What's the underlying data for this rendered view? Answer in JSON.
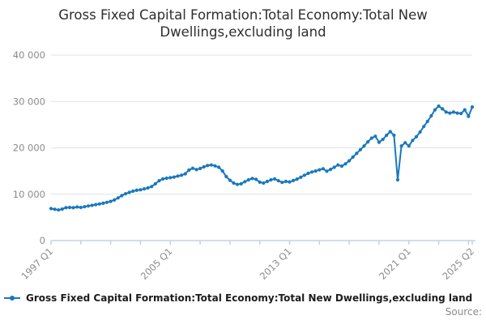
{
  "title_lines": [
    "Gross Fixed Capital Formation:Total Economy:Total New",
    "Dwellings,excluding land"
  ],
  "legend": {
    "label": "Gross Fixed Capital Formation:Total Economy:Total New Dwellings,excluding land"
  },
  "source_label": "Source:",
  "colors": {
    "line": "#1878be",
    "title_text": "#2e2e2e",
    "axis_text": "#8b8b8b",
    "gridline": "#e2e2e2",
    "axis_line": "#c7d0e4",
    "legend_text": "#1c1c1c",
    "source_text": "#8b8b8b"
  },
  "chart_data": {
    "type": "line",
    "title": "Gross Fixed Capital Formation:Total Economy:Total New Dwellings,excluding land",
    "xlabel": "",
    "ylabel": "",
    "frequency": "quarterly",
    "x_start": "1997 Q1",
    "x_end": "2025 Q2",
    "n_points": 114,
    "ylim": [
      0,
      40000
    ],
    "y_ticks": [
      0,
      10000,
      20000,
      30000,
      40000
    ],
    "y_tick_labels": [
      "0",
      "10 000",
      "20 000",
      "30 000",
      "40 000"
    ],
    "x_tick_labels": [
      "1997 Q1",
      "2005 Q1",
      "2013 Q1",
      "2021 Q1",
      "2025 Q2"
    ],
    "x_tick_indices": [
      0,
      32,
      64,
      96,
      113
    ],
    "minor_tick_every": 8,
    "grid": true,
    "marker": "circle",
    "legend_position": "bottom-left",
    "values": [
      6900,
      6750,
      6600,
      6800,
      7100,
      7150,
      7100,
      7250,
      7150,
      7300,
      7450,
      7600,
      7750,
      7900,
      8050,
      8250,
      8450,
      8750,
      9200,
      9700,
      10100,
      10400,
      10650,
      10850,
      10950,
      11150,
      11350,
      11650,
      12250,
      12900,
      13300,
      13450,
      13550,
      13700,
      13900,
      14100,
      14400,
      15200,
      15600,
      15300,
      15550,
      15900,
      16200,
      16300,
      16100,
      15800,
      15000,
      13800,
      13000,
      12400,
      12100,
      12250,
      12700,
      13100,
      13400,
      13200,
      12600,
      12400,
      12750,
      13100,
      13300,
      12900,
      12550,
      12750,
      12650,
      12950,
      13250,
      13650,
      14100,
      14500,
      14800,
      15000,
      15250,
      15500,
      14950,
      15350,
      15800,
      16300,
      16050,
      16550,
      17200,
      18000,
      18800,
      19600,
      20400,
      21300,
      22100,
      22500,
      21200,
      21800,
      22700,
      23500,
      22700,
      13100,
      20400,
      21100,
      20400,
      21600,
      22400,
      23400,
      24600,
      25700,
      26900,
      28200,
      29000,
      28400,
      27700,
      27500,
      27700,
      27500,
      27400,
      28200,
      26800,
      28800
    ]
  }
}
